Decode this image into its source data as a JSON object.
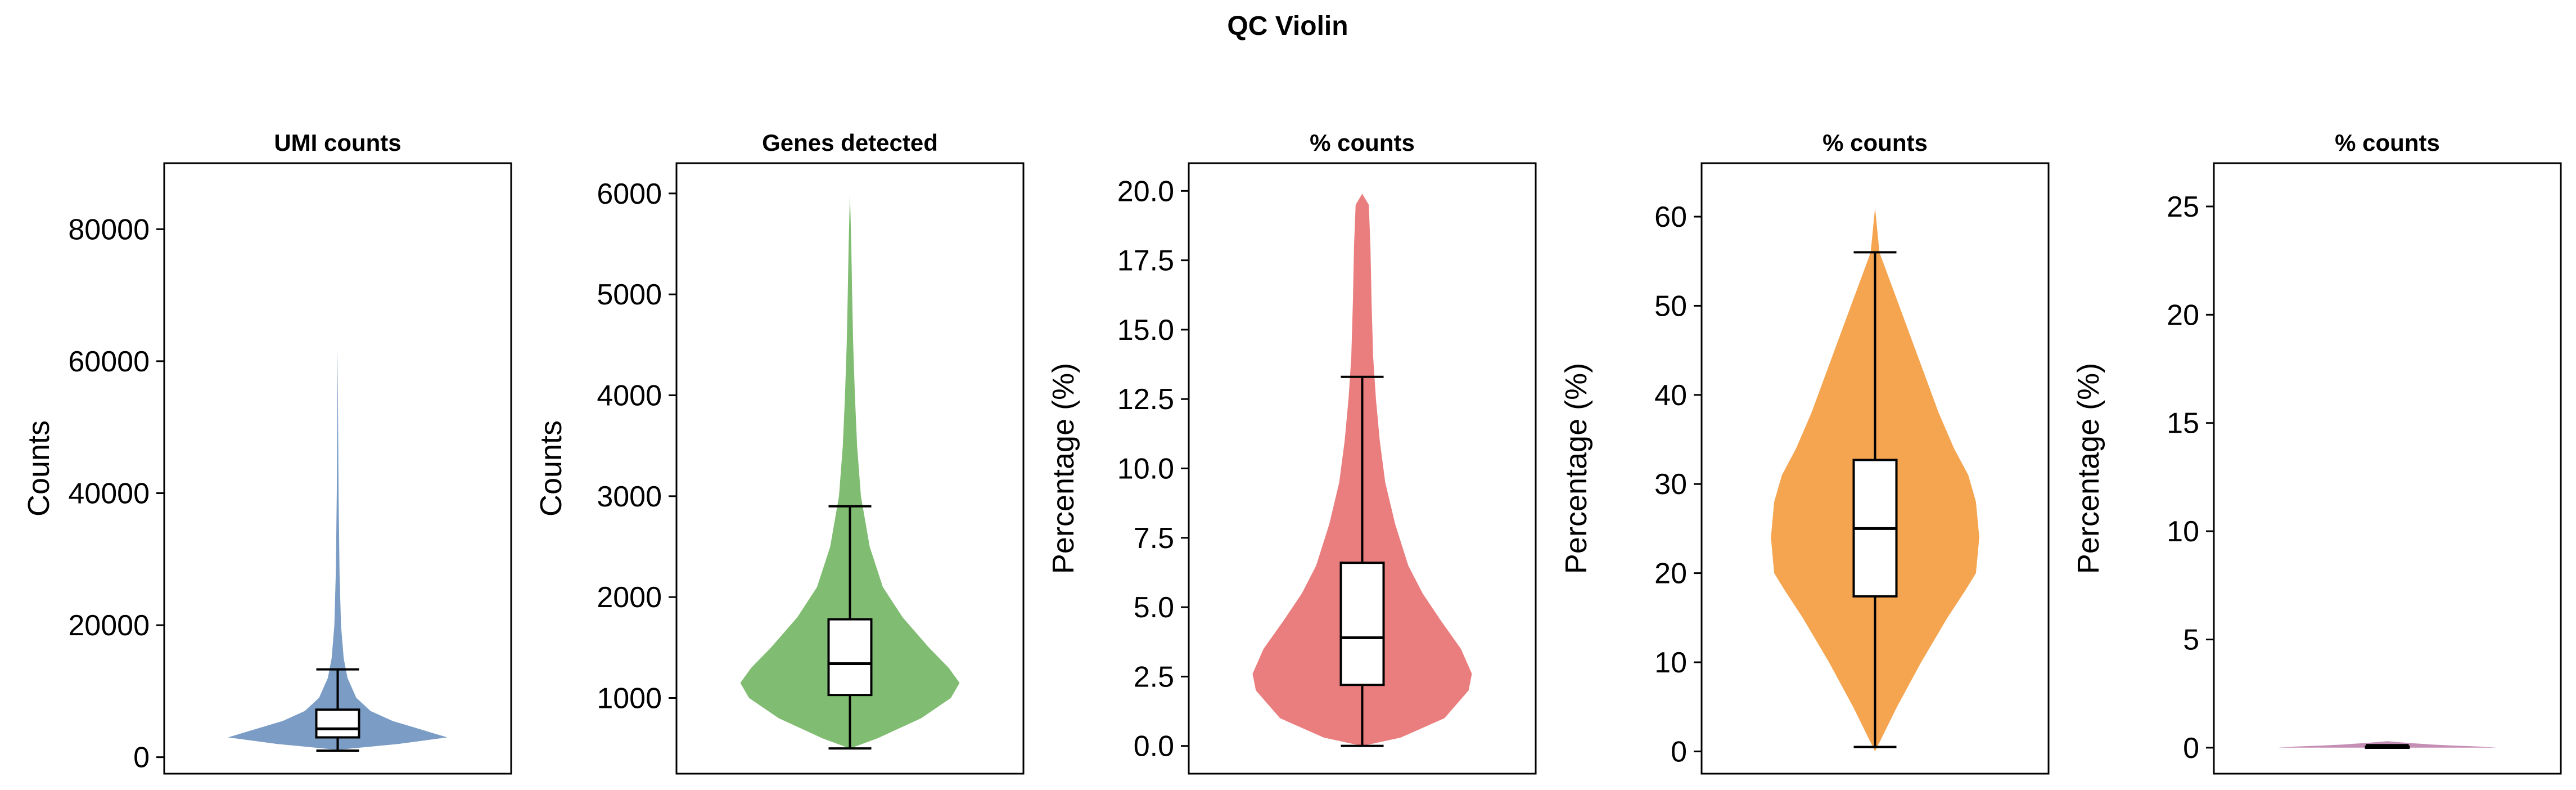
{
  "figure": {
    "title": "QC Violin"
  },
  "chart_data": [
    {
      "type": "violin",
      "title": "UMI counts",
      "ylabel": "Counts",
      "ylim": [
        -2500,
        90000
      ],
      "yticks": [
        0,
        20000,
        40000,
        60000,
        80000
      ],
      "color": "#7a9cc5",
      "violin_top": 62000,
      "density": [
        [
          1200,
          0.05
        ],
        [
          2000,
          0.55
        ],
        [
          3000,
          1.0
        ],
        [
          4000,
          0.8
        ],
        [
          5500,
          0.5
        ],
        [
          7000,
          0.3
        ],
        [
          9000,
          0.17
        ],
        [
          12000,
          0.09
        ],
        [
          15000,
          0.055
        ],
        [
          20000,
          0.03
        ],
        [
          28000,
          0.017
        ],
        [
          40000,
          0.008
        ],
        [
          50000,
          0.004
        ],
        [
          62000,
          0.0
        ]
      ],
      "box": {
        "whisker_low": 1000,
        "q1": 3000,
        "median": 4300,
        "q3": 7200,
        "whisker_high": 13300
      }
    },
    {
      "type": "violin",
      "title": "Genes detected",
      "ylabel": "Counts",
      "ylim": [
        250,
        6300
      ],
      "yticks": [
        1000,
        2000,
        3000,
        4000,
        5000,
        6000
      ],
      "color": "#80bc72",
      "violin_top": 6000,
      "density": [
        [
          500,
          0.0
        ],
        [
          600,
          0.25
        ],
        [
          800,
          0.65
        ],
        [
          1000,
          0.92
        ],
        [
          1150,
          1.0
        ],
        [
          1300,
          0.9
        ],
        [
          1500,
          0.72
        ],
        [
          1800,
          0.48
        ],
        [
          2100,
          0.3
        ],
        [
          2500,
          0.18
        ],
        [
          3000,
          0.1
        ],
        [
          3500,
          0.065
        ],
        [
          4000,
          0.045
        ],
        [
          4500,
          0.03
        ],
        [
          5000,
          0.02
        ],
        [
          5500,
          0.012
        ],
        [
          6000,
          0.0
        ]
      ],
      "box": {
        "whisker_low": 500,
        "q1": 1030,
        "median": 1340,
        "q3": 1780,
        "whisker_high": 2900
      }
    },
    {
      "type": "violin",
      "title": "% counts",
      "ylabel": "Percentage (%)",
      "ylim": [
        -1.0,
        21.0
      ],
      "yticks": [
        0.0,
        2.5,
        5.0,
        7.5,
        10.0,
        12.5,
        15.0,
        17.5,
        20.0
      ],
      "tick_labels": [
        "0.0",
        "2.5",
        "5.0",
        "7.5",
        "10.0",
        "12.5",
        "15.0",
        "17.5",
        "20.0"
      ],
      "color": "#ea7e7e",
      "violin_top": 19.9,
      "density": [
        [
          0,
          0.0
        ],
        [
          0.3,
          0.35
        ],
        [
          1.0,
          0.75
        ],
        [
          2.0,
          0.97
        ],
        [
          2.6,
          1.0
        ],
        [
          3.5,
          0.9
        ],
        [
          4.5,
          0.72
        ],
        [
          5.5,
          0.55
        ],
        [
          6.5,
          0.42
        ],
        [
          8.0,
          0.3
        ],
        [
          9.5,
          0.21
        ],
        [
          11.0,
          0.16
        ],
        [
          12.5,
          0.125
        ],
        [
          14.0,
          0.1
        ],
        [
          16.0,
          0.085
        ],
        [
          18.0,
          0.075
        ],
        [
          19.5,
          0.06
        ],
        [
          19.9,
          0.0
        ]
      ],
      "box": {
        "whisker_low": 0.0,
        "q1": 2.2,
        "median": 3.9,
        "q3": 6.6,
        "whisker_high": 13.3
      }
    },
    {
      "type": "violin",
      "title": "% counts",
      "ylabel": "Percentage (%)",
      "ylim": [
        -2.5,
        66.0
      ],
      "yticks": [
        0,
        10,
        20,
        30,
        40,
        50,
        60
      ],
      "color": "#f5a450",
      "violin_top": 61,
      "density": [
        [
          0,
          0.0
        ],
        [
          1,
          0.04
        ],
        [
          3,
          0.12
        ],
        [
          5,
          0.2
        ],
        [
          10,
          0.42
        ],
        [
          15,
          0.66
        ],
        [
          18,
          0.82
        ],
        [
          20,
          0.92
        ],
        [
          24,
          0.95
        ],
        [
          28,
          0.92
        ],
        [
          31,
          0.85
        ],
        [
          34,
          0.72
        ],
        [
          38,
          0.58
        ],
        [
          42,
          0.46
        ],
        [
          46,
          0.34
        ],
        [
          50,
          0.22
        ],
        [
          53,
          0.13
        ],
        [
          56,
          0.04
        ],
        [
          61,
          0.0
        ]
      ],
      "box": {
        "whisker_low": 0.5,
        "q1": 17.4,
        "median": 25.0,
        "q3": 32.7,
        "whisker_high": 56.0
      }
    },
    {
      "type": "violin",
      "title": "% counts",
      "ylabel": "Percentage (%)",
      "ylim": [
        -1.2,
        27.0
      ],
      "yticks": [
        0,
        5,
        10,
        15,
        20,
        25
      ],
      "color": "#c58fb5",
      "violin_top": 0.3,
      "density": [
        [
          0,
          1.0
        ],
        [
          0.05,
          0.85
        ],
        [
          0.1,
          0.6
        ],
        [
          0.15,
          0.4
        ],
        [
          0.2,
          0.25
        ],
        [
          0.25,
          0.12
        ],
        [
          0.3,
          0.0
        ]
      ],
      "box": {
        "whisker_low": 0.0,
        "q1": 0.0,
        "median": 0.02,
        "q3": 0.05,
        "whisker_high": 0.12
      }
    }
  ]
}
